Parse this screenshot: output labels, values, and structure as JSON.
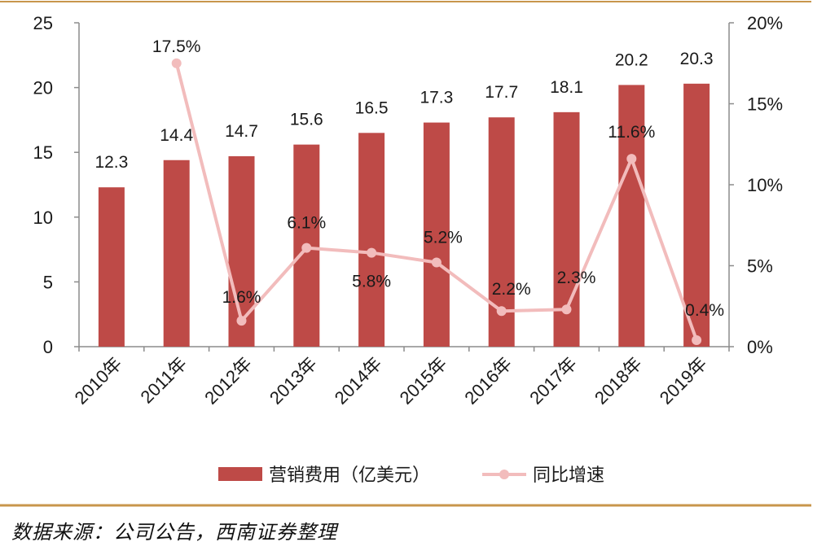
{
  "chart_data": {
    "type": "bar",
    "categories": [
      "2010年",
      "2011年",
      "2012年",
      "2013年",
      "2014年",
      "2015年",
      "2016年",
      "2017年",
      "2018年",
      "2019年"
    ],
    "series": [
      {
        "name": "营销费用（亿美元）",
        "kind": "bar",
        "axis": "left",
        "values": [
          12.3,
          14.4,
          14.7,
          15.6,
          16.5,
          17.3,
          17.7,
          18.1,
          20.2,
          20.3
        ],
        "labels": [
          "12.3",
          "14.4",
          "14.7",
          "15.6",
          "16.5",
          "17.3",
          "17.7",
          "18.1",
          "20.2",
          "20.3"
        ]
      },
      {
        "name": "同比增速",
        "kind": "line",
        "axis": "right",
        "values": [
          null,
          17.5,
          1.6,
          6.1,
          5.8,
          5.2,
          2.2,
          2.3,
          11.6,
          0.4
        ],
        "labels": [
          "",
          "17.5%",
          "1.6%",
          "6.1%",
          "5.8%",
          "5.2%",
          "2.2%",
          "2.3%",
          "11.6%",
          "0.4%"
        ]
      }
    ],
    "y_left": {
      "min": 0,
      "max": 25,
      "ticks": [
        "0",
        "5",
        "10",
        "15",
        "20",
        "25"
      ]
    },
    "y_right": {
      "min": 0,
      "max": 20,
      "ticks": [
        "0%",
        "5%",
        "10%",
        "15%",
        "20%"
      ]
    },
    "legend": {
      "position": "bottom",
      "items": [
        "营销费用（亿美元）",
        "同比增速"
      ]
    },
    "colors": {
      "bar": "#be4a47",
      "line": "#f2bcbc",
      "frame": "#c8964c",
      "axis": "#8c8c8c"
    }
  },
  "source": "数据来源：公司公告，西南证券整理"
}
